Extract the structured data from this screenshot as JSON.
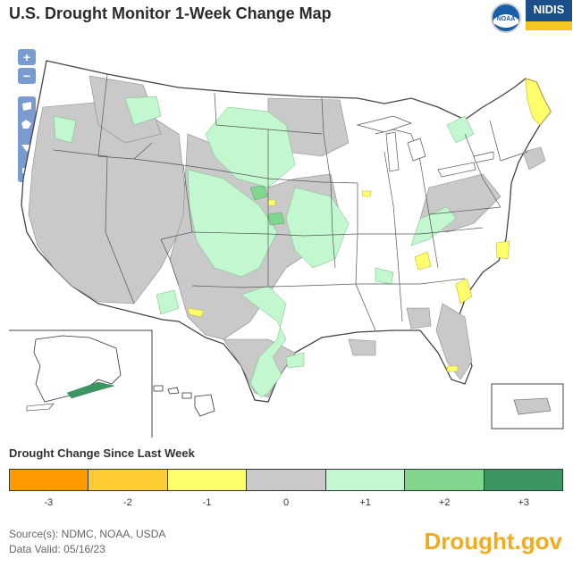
{
  "title": "U.S. Drought Monitor 1-Week Change Map",
  "logos": {
    "noaa": "NOAA",
    "nidis": "NIDIS"
  },
  "controls": {
    "zoom_in": "+",
    "zoom_out": "−"
  },
  "legend": {
    "title": "Drought Change Since Last Week",
    "items": [
      {
        "label": "-3",
        "color": "#ff9a00"
      },
      {
        "label": "-2",
        "color": "#ffcc33"
      },
      {
        "label": "-1",
        "color": "#ffff6b"
      },
      {
        "label": "0",
        "color": "#c9c9c9"
      },
      {
        "label": "+1",
        "color": "#c3f7cf"
      },
      {
        "label": "+2",
        "color": "#7fd68c"
      },
      {
        "label": "+3",
        "color": "#3c9662"
      }
    ]
  },
  "source": {
    "line1": "Source(s): NDMC, NOAA, USDA",
    "line2": "Data Valid: 05/16/23"
  },
  "brand": "Drought.gov"
}
